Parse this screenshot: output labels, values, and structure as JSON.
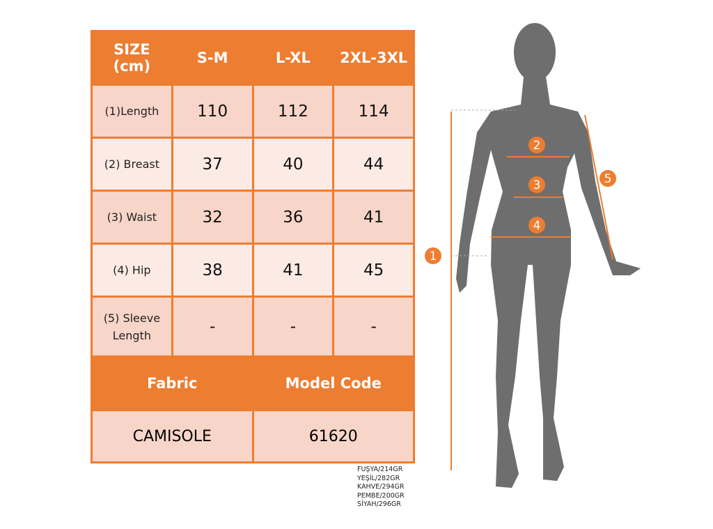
{
  "table": {
    "headers": [
      "SIZE\n(cm)",
      "S-M",
      "L-XL",
      "2XL-3XL"
    ],
    "header_line1": "SIZE",
    "header_line2": "(cm)",
    "rows": [
      {
        "label": "(1)Length",
        "values": [
          "110",
          "112",
          "114"
        ]
      },
      {
        "label": "(2) Breast",
        "values": [
          "37",
          "40",
          "44"
        ]
      },
      {
        "label": "(3) Waist",
        "values": [
          "32",
          "36",
          "41"
        ]
      },
      {
        "label": "(4) Hip",
        "values": [
          "38",
          "41",
          "45"
        ]
      },
      {
        "label": "(5) Sleeve Length",
        "values": [
          "-",
          "-",
          "-"
        ]
      }
    ],
    "fabric_label": "Fabric",
    "model_code_label": "Model Code",
    "fabric": "CAMISOLE",
    "model_code": "61620"
  },
  "weights": [
    "FUŞYA/214GR",
    "YEŞİL/282GR",
    "KAHVE/294GR",
    "PEMBE/200GR",
    "SİYAH/296GR"
  ],
  "markers": [
    "1",
    "2",
    "3",
    "4",
    "5"
  ],
  "colors": {
    "accent": "#ED7D31",
    "cell_dark": "#F8D5C9",
    "cell_light": "#FCEBE4",
    "silhouette": "#6E6E6E"
  }
}
